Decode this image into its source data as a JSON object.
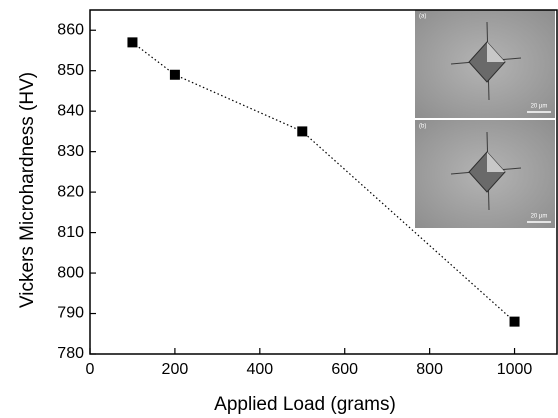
{
  "chart_data": {
    "type": "line",
    "x_label": "Applied Load (grams)",
    "y_label": "Vickers Microhardness (HV)",
    "x": [
      100,
      200,
      500,
      1000
    ],
    "series": [
      {
        "values": [
          857,
          849,
          835,
          788
        ],
        "color": "#000000",
        "line_style": "dotted",
        "marker": "square"
      }
    ],
    "xlim": [
      0,
      1100
    ],
    "xticks": [
      0,
      200,
      400,
      600,
      800,
      1000
    ],
    "ylim": [
      780,
      865
    ],
    "yticks": [
      780,
      790,
      800,
      810,
      820,
      830,
      840,
      850,
      860
    ],
    "grid": false,
    "insets": [
      {
        "label": "(a)",
        "scale_bar": "20 µm"
      },
      {
        "label": "(b)",
        "scale_bar": "20 µm"
      }
    ]
  }
}
